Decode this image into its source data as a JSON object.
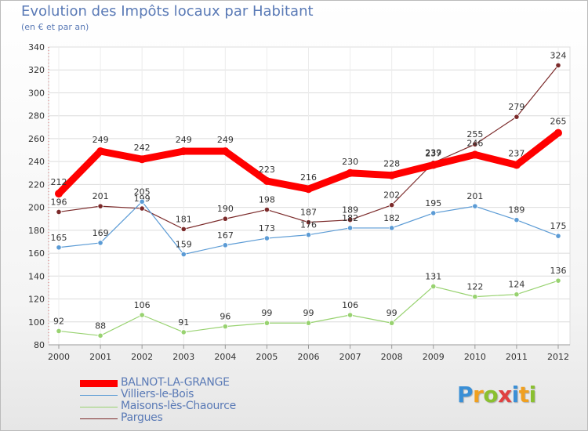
{
  "title": "Evolution des Impôts locaux par Habitant",
  "subtitle": "(en € et par an)",
  "logo_text": "Proxiti",
  "logo_colors": [
    "#3a8fd6",
    "#f0a020",
    "#8ac030",
    "#e04040",
    "#3a8fd6",
    "#f0a020",
    "#8ac030"
  ],
  "chart_data": {
    "type": "line",
    "x": [
      "2000",
      "2001",
      "2002",
      "2003",
      "2004",
      "2005",
      "2006",
      "2007",
      "2008",
      "2009",
      "2010",
      "2011",
      "2012"
    ],
    "ylim": [
      80,
      340
    ],
    "yticks": [
      "80",
      "100",
      "120",
      "140",
      "160",
      "180",
      "200",
      "220",
      "240",
      "260",
      "280",
      "300",
      "320",
      "340"
    ],
    "grid": true,
    "legend_position": "bottom-left",
    "series": [
      {
        "name": "BALNOT-LA-GRANGE",
        "color": "#ff0000",
        "values": [
          212,
          249,
          242,
          249,
          249,
          223,
          216,
          230,
          228,
          237,
          246,
          237,
          265
        ]
      },
      {
        "name": "Villiers-le-Bois",
        "color": "#5b9bd5",
        "values": [
          165,
          169,
          205,
          159,
          167,
          173,
          176,
          182,
          182,
          195,
          201,
          189,
          175
        ]
      },
      {
        "name": "Maisons-lès-Chaource",
        "color": "#98d270",
        "values": [
          92,
          88,
          106,
          91,
          96,
          99,
          99,
          106,
          99,
          131,
          122,
          124,
          136
        ]
      },
      {
        "name": "Pargues",
        "color": "#7b2a2a",
        "values": [
          196,
          201,
          199,
          181,
          190,
          198,
          187,
          189,
          202,
          239,
          255,
          279,
          324
        ]
      }
    ]
  }
}
